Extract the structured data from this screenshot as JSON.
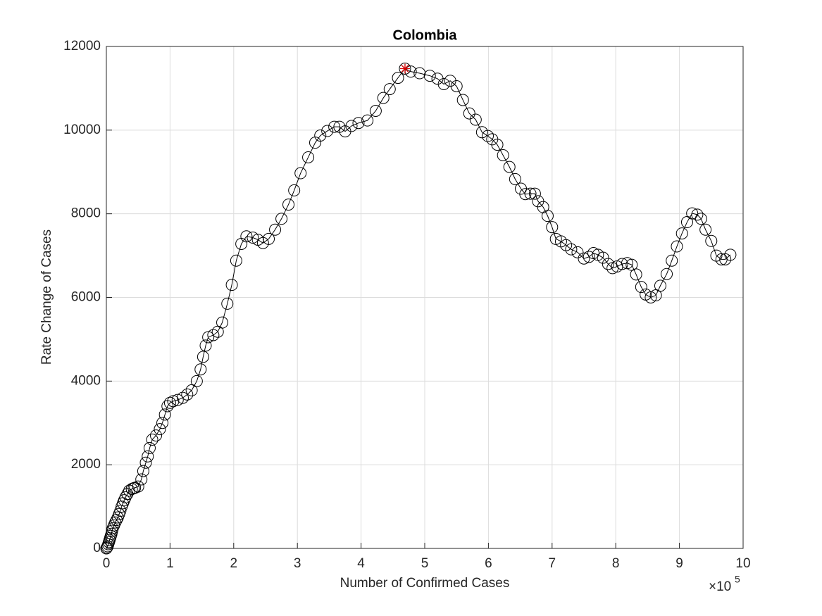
{
  "chart_data": {
    "type": "line",
    "title": "Colombia",
    "x_label": "Number of Confirmed Cases",
    "y_label": "Rate Change of Cases",
    "x_multiplier": {
      "base": "×10",
      "exponent": "5"
    },
    "x": [
      0,
      0.01,
      0.02,
      0.03,
      0.04,
      0.05,
      0.06,
      0.07,
      0.08,
      0.09,
      0.1,
      0.12,
      0.14,
      0.16,
      0.18,
      0.2,
      0.22,
      0.24,
      0.26,
      0.28,
      0.3,
      0.33,
      0.36,
      0.4,
      0.43,
      0.45,
      0.5,
      0.55,
      0.58,
      0.62,
      0.65,
      0.68,
      0.72,
      0.78,
      0.84,
      0.88,
      0.92,
      0.96,
      1.0,
      1.05,
      1.12,
      1.2,
      1.27,
      1.34,
      1.42,
      1.48,
      1.52,
      1.56,
      1.6,
      1.68,
      1.75,
      1.82,
      1.9,
      1.97,
      2.04,
      2.12,
      2.2,
      2.3,
      2.38,
      2.46,
      2.55,
      2.65,
      2.75,
      2.86,
      2.95,
      3.05,
      3.17,
      3.28,
      3.36,
      3.47,
      3.58,
      3.66,
      3.75,
      3.85,
      3.96,
      4.1,
      4.23,
      4.35,
      4.45,
      4.58,
      4.69,
      4.78,
      4.92,
      5.08,
      5.2,
      5.3,
      5.4,
      5.5,
      5.6,
      5.7,
      5.8,
      5.9,
      5.99,
      6.06,
      6.14,
      6.23,
      6.33,
      6.42,
      6.51,
      6.58,
      6.66,
      6.73,
      6.78,
      6.86,
      6.93,
      7.0,
      7.06,
      7.14,
      7.22,
      7.3,
      7.4,
      7.5,
      7.58,
      7.65,
      7.72,
      7.8,
      7.88,
      7.95,
      8.02,
      8.1,
      8.18,
      8.25,
      8.32,
      8.4,
      8.47,
      8.55,
      8.63,
      8.7,
      8.8,
      8.88,
      8.96,
      9.04,
      9.12,
      9.2,
      9.28,
      9.34,
      9.41,
      9.5,
      9.58,
      9.66,
      9.72,
      9.8
    ],
    "series": [
      {
        "color": "#000000",
        "values": [
          0,
          20,
          50,
          100,
          150,
          200,
          250,
          300,
          350,
          420,
          480,
          550,
          620,
          680,
          740,
          820,
          900,
          1000,
          1080,
          1150,
          1220,
          1300,
          1380,
          1420,
          1440,
          1450,
          1480,
          1650,
          1850,
          2050,
          2200,
          2400,
          2600,
          2700,
          2850,
          3000,
          3200,
          3400,
          3480,
          3520,
          3550,
          3600,
          3680,
          3780,
          4000,
          4280,
          4580,
          4850,
          5050,
          5100,
          5180,
          5400,
          5850,
          6300,
          6880,
          7280,
          7460,
          7430,
          7380,
          7300,
          7400,
          7620,
          7880,
          8220,
          8560,
          8970,
          9350,
          9700,
          9870,
          9980,
          10080,
          10080,
          9970,
          10100,
          10170,
          10230,
          10460,
          10770,
          10980,
          11250,
          11470,
          11400,
          11360,
          11300,
          11230,
          11100,
          11180,
          11050,
          10720,
          10400,
          10250,
          9950,
          9860,
          9780,
          9650,
          9400,
          9120,
          8830,
          8600,
          8470,
          8480,
          8480,
          8300,
          8160,
          7950,
          7680,
          7400,
          7340,
          7250,
          7150,
          7080,
          6930,
          6970,
          7060,
          7020,
          6950,
          6800,
          6700,
          6740,
          6800,
          6820,
          6780,
          6550,
          6250,
          6070,
          6000,
          6050,
          6280,
          6560,
          6880,
          7220,
          7530,
          7800,
          8010,
          7980,
          7880,
          7620,
          7350,
          7000,
          6910,
          6910,
          7020
        ]
      }
    ],
    "highlight": {
      "x": 4.69,
      "y": 11470,
      "color": "#d40000"
    },
    "xlim": [
      0,
      10
    ],
    "xticks": [
      0,
      1,
      2,
      3,
      4,
      5,
      6,
      7,
      8,
      9,
      10
    ],
    "ylim": [
      0,
      12000
    ],
    "yticks": [
      0,
      2000,
      4000,
      6000,
      8000,
      10000,
      12000
    ],
    "grid": true
  }
}
